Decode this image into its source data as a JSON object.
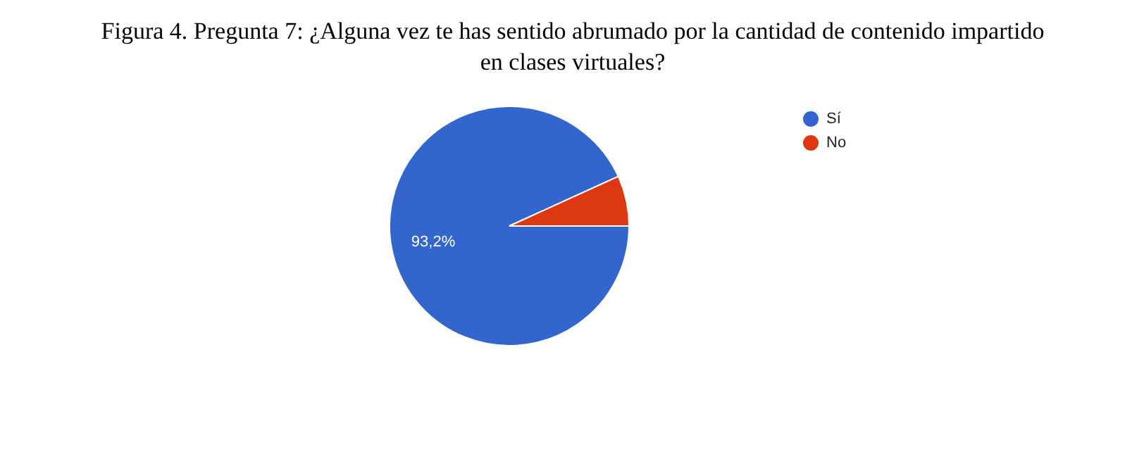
{
  "chart_data": {
    "type": "pie",
    "title": "Figura 4. Pregunta 7: ¿Alguna vez te has sentido abrumado por la cantidad de contenido impartido en clases virtuales?",
    "categories": [
      "Sí",
      "No"
    ],
    "values": [
      93.2,
      6.8
    ],
    "colors": [
      "#3366cc",
      "#dc3912"
    ],
    "value_labels": [
      "93,2%",
      null
    ],
    "legend": "right"
  }
}
